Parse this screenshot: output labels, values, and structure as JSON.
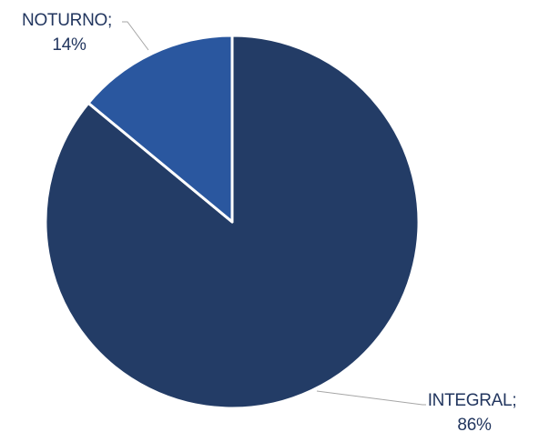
{
  "chart_data": {
    "type": "pie",
    "title": "",
    "slices": [
      {
        "name": "INTEGRAL",
        "value": 86,
        "label_line1": "INTEGRAL;",
        "label_line2": "86%",
        "color": "#233c66"
      },
      {
        "name": "NOTURNO",
        "value": 14,
        "label_line1": "NOTURNO;",
        "label_line2": "14%",
        "color": "#2a579f"
      }
    ],
    "slice_border_color": "#ffffff",
    "leader_line_color": "#a6a6a6",
    "label_color": "#22365f",
    "legend": "none"
  }
}
